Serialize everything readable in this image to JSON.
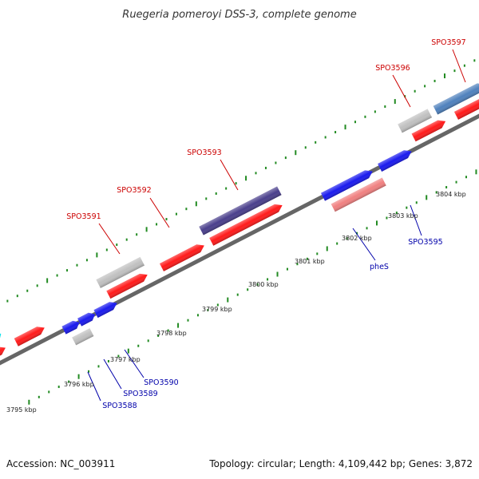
{
  "title": "Ruegeria pomeroyi DSS-3, complete genome",
  "footer": {
    "accession": "Accession: NC_003911",
    "topology": "Topology: circular; Length: 4,109,442 bp; Genes: 3,872"
  },
  "colors": {
    "backbone": "#666666",
    "tick_dot": "#228b22",
    "label_forward": "#cc0000",
    "label_reverse": "#0000aa",
    "cds": "#ff1a1a",
    "gene_blue": "#1a1aee",
    "gene_grey": "#c0c0c0",
    "gene_purple": "#4a3f8c",
    "gene_pink": "#f08080",
    "gene_steel": "#4f81bd",
    "gene_cyan": "#00e5ee"
  },
  "chart_data": {
    "type": "genome-map",
    "ruler_unit": "kbp",
    "tick_labels": [
      "3795 kbp",
      "3796 kbp",
      "3797 kbp",
      "3798 kbp",
      "3799 kbp",
      "3800 kbp",
      "3801 kbp",
      "3802 kbp",
      "3803 kbp",
      "3804 kbp"
    ],
    "gene_labels_forward": [
      "SPO3591",
      "SPO3592",
      "SPO3593",
      "SPO3596",
      "SPO3597"
    ],
    "gene_labels_reverse": [
      "SPO3588",
      "SPO3589",
      "SPO3590",
      "pheS",
      "SPO3595"
    ]
  }
}
